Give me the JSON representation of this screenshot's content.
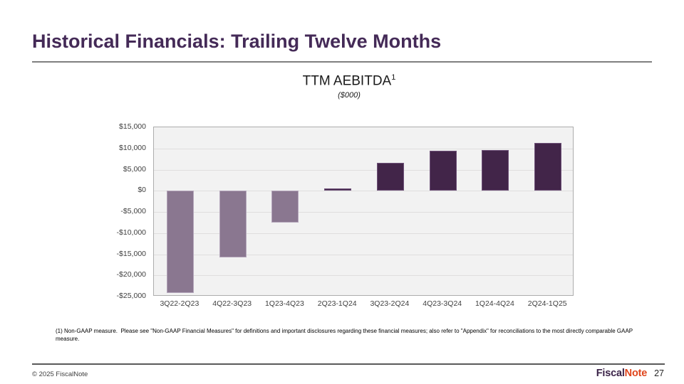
{
  "slide": {
    "title": "Historical Financials: Trailing Twelve Months",
    "footnote": "(1) Non-GAAP measure.  Please see \"Non-GAAP Financial Measures\" for definitions and important disclosures regarding these financial measures; also refer to \"Appendix\" for reconciliations to the most directly comparable GAAP measure.",
    "footer": {
      "copyright": "© 2025 FiscalNote",
      "logo_fiscal": "Fiscal",
      "logo_note": "Note",
      "page_number": "27"
    }
  },
  "chart_data": {
    "type": "bar",
    "title": "TTM AEBITDA",
    "title_superscript": "1",
    "subtitle": "($000)",
    "categories": [
      "3Q22-2Q23",
      "4Q22-3Q23",
      "1Q23-4Q23",
      "2Q23-1Q24",
      "3Q23-2Q24",
      "4Q23-3Q24",
      "1Q24-4Q24",
      "2Q24-1Q25"
    ],
    "values": [
      -24200,
      -15700,
      -7600,
      600,
      6600,
      9500,
      9700,
      11300
    ],
    "xlabel": "",
    "ylabel": "",
    "ylim": [
      -25000,
      15000
    ],
    "ytick_step": 5000,
    "ytick_labels": [
      "$15,000",
      "$10,000",
      "$5,000",
      "$0",
      "-$5,000",
      "-$10,000",
      "-$15,000",
      "-$20,000",
      "-$25,000"
    ],
    "grid": true,
    "legend": "none",
    "colors": {
      "negative_bar": "#8a7790",
      "negative_bar_edge": "#b4a6bb",
      "positive_bar": "#422549",
      "positive_bar_edge": "#6f5279",
      "plot_background": "#f2f2f2",
      "gridline": "#dfdede",
      "plot_border": "#adadad",
      "title_accent": "#442a57"
    }
  }
}
